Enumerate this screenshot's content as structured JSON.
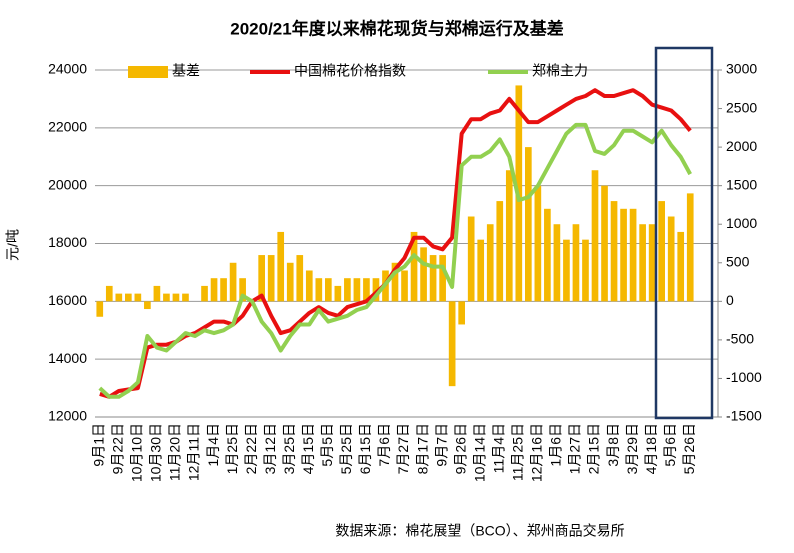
{
  "chart_data": {
    "type": "bar",
    "title": "2020/21年度以来棉花现货与郑棉运行及基差",
    "y_label": "元/吨",
    "source": "数据来源：棉花展望（BCO）、郑州商品交易所",
    "categories": [
      "9月1日",
      null,
      "9月22日",
      null,
      "10月10日",
      null,
      "10月30日",
      null,
      "11月20日",
      null,
      "12月11日",
      null,
      "1月4日",
      null,
      "1月25日",
      null,
      "2月22日",
      null,
      "3月12日",
      null,
      "3月25日",
      null,
      "4月15日",
      null,
      "5月5日",
      null,
      "5月25日",
      null,
      "6月15日",
      null,
      "7月6日",
      null,
      "7月27日",
      null,
      "8月17日",
      null,
      "9月7日",
      null,
      "9月26日",
      null,
      "10月14日",
      null,
      "11月4日",
      null,
      "11月25日",
      null,
      "12月16日",
      null,
      "1月6日",
      null,
      "1月27日",
      null,
      "2月15日",
      null,
      "3月8日",
      null,
      "3月29日",
      null,
      "4月18日",
      null,
      "5月6日",
      null,
      "5月26日"
    ],
    "series": [
      {
        "name": "基差",
        "type": "bar",
        "axis": "y2",
        "color": "#f5b800",
        "values": [
          -200,
          200,
          100,
          100,
          100,
          -100,
          200,
          100,
          100,
          100,
          0,
          200,
          300,
          300,
          500,
          300,
          0,
          600,
          600,
          900,
          500,
          600,
          400,
          300,
          300,
          200,
          300,
          300,
          300,
          300,
          400,
          500,
          400,
          900,
          700,
          600,
          600,
          -1100,
          -300,
          1100,
          800,
          1000,
          1300,
          1700,
          2800,
          2000,
          1500,
          1200,
          1000,
          800,
          1000,
          800,
          1700,
          1500,
          1300,
          1200,
          1200,
          1000,
          1000,
          1300,
          1100,
          900,
          1400
        ]
      },
      {
        "name": "中国棉花价格指数",
        "type": "line",
        "color": "#e81010",
        "values": [
          12800,
          12700,
          12900,
          12950,
          13000,
          14400,
          14500,
          14500,
          14600,
          14800,
          14900,
          15100,
          15300,
          15300,
          15200,
          15500,
          16000,
          16200,
          15500,
          14900,
          15000,
          15300,
          15600,
          15800,
          15600,
          15500,
          15800,
          15900,
          16000,
          16300,
          16600,
          17100,
          17500,
          18200,
          18200,
          17900,
          17800,
          18200,
          21800,
          22300,
          22300,
          22500,
          22600,
          23000,
          22600,
          22200,
          22200,
          22400,
          22600,
          22800,
          23000,
          23100,
          23300,
          23100,
          23100,
          23200,
          23300,
          23100,
          22800,
          22700,
          22600,
          22300,
          21900
        ]
      },
      {
        "name": "郑棉主力",
        "type": "line",
        "color": "#92d050",
        "values": [
          13000,
          12700,
          12700,
          12900,
          13200,
          14800,
          14400,
          14300,
          14600,
          14900,
          14800,
          15000,
          14900,
          15000,
          15200,
          16200,
          16000,
          15300,
          14900,
          14300,
          14800,
          15200,
          15200,
          15700,
          15300,
          15400,
          15500,
          15700,
          15800,
          16200,
          16600,
          17000,
          17200,
          17600,
          17300,
          17200,
          17200,
          16500,
          20700,
          21000,
          21000,
          21200,
          21600,
          21000,
          19500,
          19600,
          20000,
          20600,
          21200,
          21800,
          22100,
          22100,
          21200,
          21100,
          21400,
          21900,
          21900,
          21700,
          21500,
          21900,
          21400,
          21000,
          20400
        ]
      }
    ],
    "ylim": [
      12000,
      24000
    ],
    "yticks": [
      12000,
      14000,
      16000,
      18000,
      20000,
      22000,
      24000
    ],
    "y2lim": [
      -1500,
      3000
    ],
    "y2ticks": [
      -1500,
      -1000,
      -500,
      0,
      500,
      1000,
      1500,
      2000,
      2500,
      3000
    ],
    "grid": true
  }
}
